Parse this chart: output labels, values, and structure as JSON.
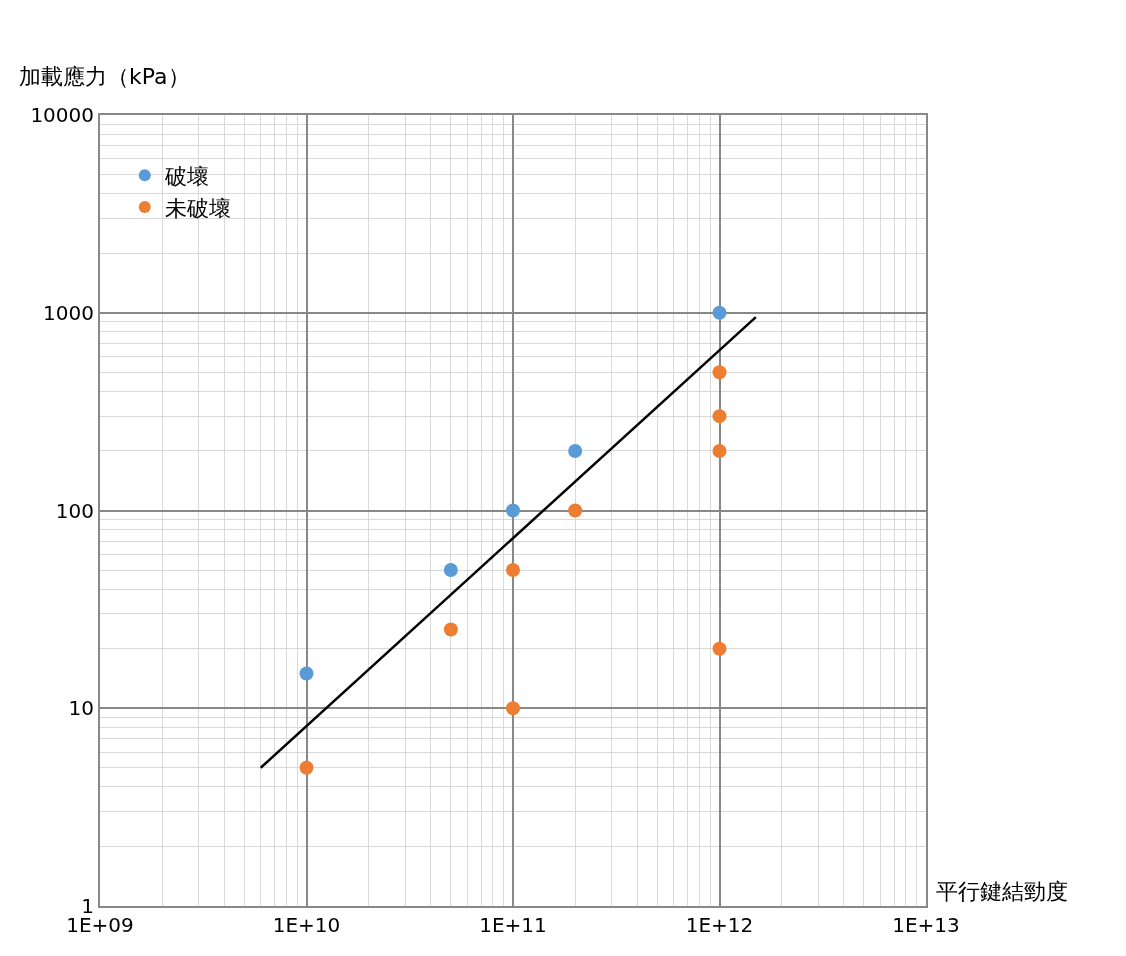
{
  "chart_data": {
    "type": "scatter",
    "ylabel": "加載應力（kPa）",
    "xlabel": "平行鍵結勁度",
    "log": "xy",
    "grid": true,
    "legend": "top left",
    "xlim": [
      1000000000.0,
      10000000000000.0
    ],
    "xticks": [
      {
        "value": 1000000000.0,
        "label": "1E+09"
      },
      {
        "value": 10000000000.0,
        "label": "1E+10"
      },
      {
        "value": 100000000000.0,
        "label": "1E+11"
      },
      {
        "value": 1000000000000.0,
        "label": "1E+12"
      },
      {
        "value": 10000000000000.0,
        "label": "1E+13"
      }
    ],
    "ylim": [
      1,
      10000
    ],
    "yticks": [
      1,
      10,
      100,
      1000,
      10000
    ],
    "series": [
      {
        "name": "破壞",
        "color": "#5b9bd5",
        "marker": "circle",
        "x": [
          10000000000.0,
          50000000000.0,
          100000000000.0,
          200000000000.0,
          1000000000000.0
        ],
        "values": [
          15,
          50,
          100,
          200,
          1000
        ]
      },
      {
        "name": "未破壞",
        "color": "#ed7d31",
        "marker": "circle",
        "x": [
          10000000000.0,
          50000000000.0,
          100000000000.0,
          100000000000.0,
          200000000000.0,
          1000000000000.0,
          1000000000000.0,
          1000000000000.0,
          1000000000000.0
        ],
        "values": [
          5,
          25,
          50,
          10,
          100,
          500,
          300,
          200,
          20
        ]
      },
      {
        "type": "line",
        "color": "#000000",
        "x": [
          6000000000.0,
          1500000000000.0
        ],
        "values": [
          5,
          950
        ]
      }
    ]
  }
}
